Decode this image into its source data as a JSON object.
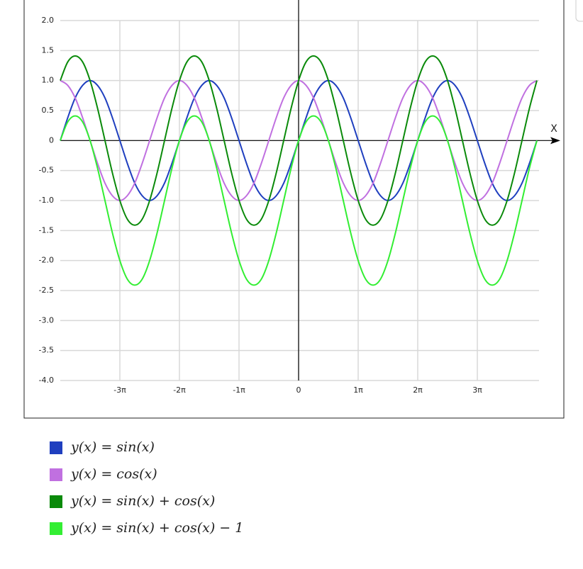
{
  "chart_data": {
    "type": "line",
    "x_label": "X",
    "x": [
      -4,
      -3.875,
      -3.75,
      -3.625,
      -3.5,
      -3.375,
      -3.25,
      -3.125,
      -3,
      -2.875,
      -2.75,
      -2.625,
      -2.5,
      -2.375,
      -2.25,
      -2.125,
      -2,
      -1.875,
      -1.75,
      -1.625,
      -1.5,
      -1.375,
      -1.25,
      -1.125,
      -1,
      -0.875,
      -0.75,
      -0.625,
      -0.5,
      -0.375,
      -0.25,
      -0.125,
      0,
      0.125,
      0.25,
      0.375,
      0.5,
      0.625,
      0.75,
      0.875,
      1,
      1.125,
      1.25,
      1.375,
      1.5,
      1.625,
      1.75,
      1.875,
      2,
      2.125,
      2.25,
      2.375,
      2.5,
      2.625,
      2.75,
      2.875,
      3,
      3.125,
      3.25,
      3.375,
      3.5,
      3.625,
      3.75,
      3.875,
      4
    ],
    "series": [
      {
        "name": "y(x) = sin(x)",
        "color": "#1f3fbf",
        "values": [
          0,
          0.38,
          0.71,
          0.92,
          1,
          0.92,
          0.71,
          0.38,
          0,
          -0.38,
          -0.71,
          -0.92,
          -1,
          -0.92,
          -0.71,
          -0.38,
          0,
          0.38,
          0.71,
          0.92,
          1,
          0.92,
          0.71,
          0.38,
          0,
          -0.38,
          -0.71,
          -0.92,
          -1,
          -0.92,
          -0.71,
          -0.38,
          0,
          0.38,
          0.71,
          0.92,
          1,
          0.92,
          0.71,
          0.38,
          0,
          -0.38,
          -0.71,
          -0.92,
          -1,
          -0.92,
          -0.71,
          -0.38,
          0,
          0.38,
          0.71,
          0.92,
          1,
          0.92,
          0.71,
          0.38,
          0,
          -0.38,
          -0.71,
          -0.92,
          -1,
          -0.92,
          -0.71,
          -0.38,
          0
        ]
      },
      {
        "name": "y(x) = cos(x)",
        "color": "#c070e0",
        "values": [
          1,
          0.92,
          0.71,
          0.38,
          0,
          -0.38,
          -0.71,
          -0.92,
          -1,
          -0.92,
          -0.71,
          -0.38,
          0,
          0.38,
          0.71,
          0.92,
          1,
          0.92,
          0.71,
          0.38,
          0,
          -0.38,
          -0.71,
          -0.92,
          -1,
          -0.92,
          -0.71,
          -0.38,
          0,
          0.38,
          0.71,
          0.92,
          1,
          0.92,
          0.71,
          0.38,
          0,
          -0.38,
          -0.71,
          -0.92,
          -1,
          -0.92,
          -0.71,
          -0.38,
          0,
          0.38,
          0.71,
          0.92,
          1,
          0.92,
          0.71,
          0.38,
          0,
          -0.38,
          -0.71,
          -0.92,
          -1,
          -0.92,
          -0.71,
          -0.38,
          0,
          0.38,
          0.71,
          0.92,
          1
        ]
      },
      {
        "name": "y(x) = sin(x) + cos(x)",
        "color": "#0a8a0a",
        "values": [
          1,
          1.31,
          1.41,
          1.31,
          1,
          0.54,
          0,
          -0.54,
          -1,
          -1.31,
          -1.41,
          -1.31,
          -1,
          -0.54,
          0,
          0.54,
          1,
          1.31,
          1.41,
          1.31,
          1,
          0.54,
          0,
          -0.54,
          -1,
          -1.31,
          -1.41,
          -1.31,
          -1,
          -0.54,
          0,
          0.54,
          1,
          1.31,
          1.41,
          1.31,
          1,
          0.54,
          0,
          -0.54,
          -1,
          -1.31,
          -1.41,
          -1.31,
          -1,
          -0.54,
          0,
          0.54,
          1,
          1.31,
          1.41,
          1.31,
          1,
          0.54,
          0,
          -0.54,
          -1,
          -1.31,
          -1.41,
          -1.31,
          -1,
          -0.54,
          0,
          0.54,
          1
        ]
      },
      {
        "name": "y(x) = sin(x) + cos(x) − 1",
        "color": "#33ee33",
        "values": [
          0,
          0.31,
          0.41,
          0.31,
          0,
          -0.46,
          -1,
          -1.54,
          -2,
          -2.31,
          -2.41,
          -2.31,
          -2,
          -1.54,
          -1,
          -0.46,
          0,
          0.31,
          0.41,
          0.31,
          0,
          -0.46,
          -1,
          -1.54,
          -2,
          -2.31,
          -2.41,
          -2.31,
          -2,
          -1.54,
          -1,
          -0.46,
          0,
          0.31,
          0.41,
          0.31,
          0,
          -0.46,
          -1,
          -1.54,
          -2,
          -2.31,
          -2.41,
          -2.31,
          -2,
          -1.54,
          -1,
          -0.46,
          0,
          0.31,
          0.41,
          0.31,
          0,
          -0.46,
          -1,
          -1.54,
          -2,
          -2.31,
          -2.41,
          -2.31,
          -2,
          -1.54,
          -1,
          -0.46,
          0
        ]
      }
    ],
    "xlim": [
      -4,
      4
    ],
    "xticks": [
      {
        "value": -3,
        "label": "-3π"
      },
      {
        "value": -2,
        "label": "-2π"
      },
      {
        "value": -1,
        "label": "-1π"
      },
      0,
      {
        "value": 1,
        "label": "1π"
      },
      {
        "value": 2,
        "label": "2π"
      },
      {
        "value": 3,
        "label": "3π"
      }
    ],
    "ylim": [
      -4,
      2
    ],
    "yticks": [
      {
        "value": 2,
        "label": "2.0"
      },
      1.5,
      {
        "value": 1,
        "label": "1.0"
      },
      0.5,
      0,
      -0.5,
      {
        "value": -1,
        "label": "-1.0"
      },
      -1.5,
      {
        "value": -2,
        "label": "-2.0"
      },
      -2.5,
      {
        "value": -3,
        "label": "-3.0"
      },
      -3.5,
      {
        "value": -4,
        "label": "-4.0"
      }
    ],
    "grid": true
  }
}
